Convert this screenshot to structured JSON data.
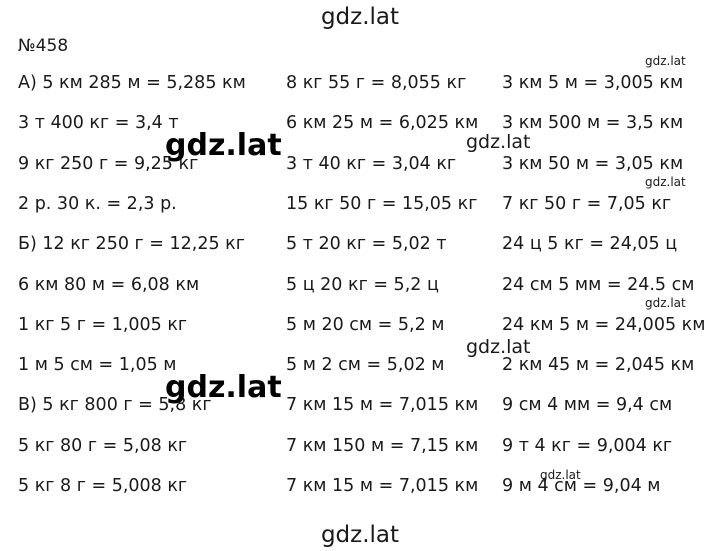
{
  "header": {
    "title": "gdz.lat"
  },
  "exercise": {
    "number": "№458",
    "rows": [
      [
        "А) 5 км 285 м = 5,285 км",
        "8 кг 55 г = 8,055 кг",
        "3 км 5 м = 3,005 км"
      ],
      [
        "3 т 400 кг = 3,4 т",
        "6 км 25 м = 6,025 км",
        "3 км 500 м = 3,5 км"
      ],
      [
        "9 кг 250 г = 9,25 кг",
        "3 т 40 кг = 3,04 кг",
        "3 км 50 м = 3,05 км"
      ],
      [
        "2 р. 30 к. = 2,3 р.",
        "15 кг 50 г = 15,05 кг",
        "7 кг 50 г = 7,05 кг"
      ],
      [
        "Б) 12 кг 250 г = 12,25 кг",
        "5 т 20 кг = 5,02 т",
        "24 ц 5 кг = 24,05 ц"
      ],
      [
        "6 км 80 м = 6,08 км",
        "5 ц 20 кг = 5,2 ц",
        "24 см 5 мм = 24.5 см"
      ],
      [
        "1 кг 5 г = 1,005 кг",
        "5 м 20 см = 5,2 м",
        "24 км 5 м = 24,005 км"
      ],
      [
        "1 м 5 см = 1,05 м",
        "5 м 2 см = 5,02 м",
        "2 км 45 м = 2,045 км"
      ],
      [
        "В) 5 кг 800 г = 5,8 кг",
        "7 км 15 м = 7,015 км",
        "9 см 4 мм = 9,4 см"
      ],
      [
        "5 кг 80 г = 5,08 кг",
        "7 км 150 м = 7,15 км",
        "9 т 4 кг = 9,004 кг"
      ],
      [
        "5 кг 8 г = 5,008 кг",
        "7 км 15 м = 7,015 км",
        "9 м 4 см = 9,04 м"
      ]
    ]
  },
  "watermarks": [
    "gdz.lat",
    "gdz.lat",
    "gdz.lat",
    "gdz.lat",
    "gdz.lat",
    "gdz.lat",
    "gdz.lat",
    "gdz.lat"
  ],
  "footer": {
    "title": "gdz.lat"
  }
}
